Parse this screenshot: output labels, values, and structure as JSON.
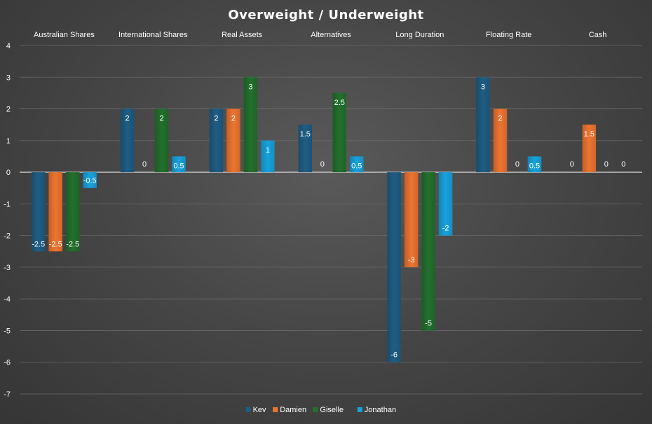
{
  "chart_data": {
    "type": "bar",
    "title": "Overweight / Underweight",
    "categories": [
      "Australian Shares",
      "International Shares",
      "Real Assets",
      "Alternatives",
      "Long Duration",
      "Floating Rate",
      "Cash"
    ],
    "series": [
      {
        "name": "Kev",
        "color": "#1f5d84",
        "values": [
          -2.5,
          2,
          2,
          1.5,
          -6,
          3,
          0
        ]
      },
      {
        "name": "Damien",
        "color": "#ee7430",
        "values": [
          -2.5,
          0,
          2,
          0,
          -3,
          2,
          1.5
        ]
      },
      {
        "name": "Giselle",
        "color": "#23702d",
        "values": [
          -2.5,
          2,
          3,
          2.5,
          -5,
          0,
          0
        ]
      },
      {
        "name": "Jonathan",
        "color": "#17a2dc",
        "values": [
          -0.5,
          0.5,
          1,
          0.5,
          -2,
          0.5,
          0
        ]
      }
    ],
    "ylim": [
      -7,
      4
    ],
    "yticks": [
      4,
      3,
      2,
      1,
      0,
      -1,
      -2,
      -3,
      -4,
      -5,
      -6,
      -7
    ],
    "xlabel": "",
    "ylabel": "",
    "grid": true,
    "legend_position": "bottom",
    "category_labels_position": "top",
    "data_labels": true
  }
}
